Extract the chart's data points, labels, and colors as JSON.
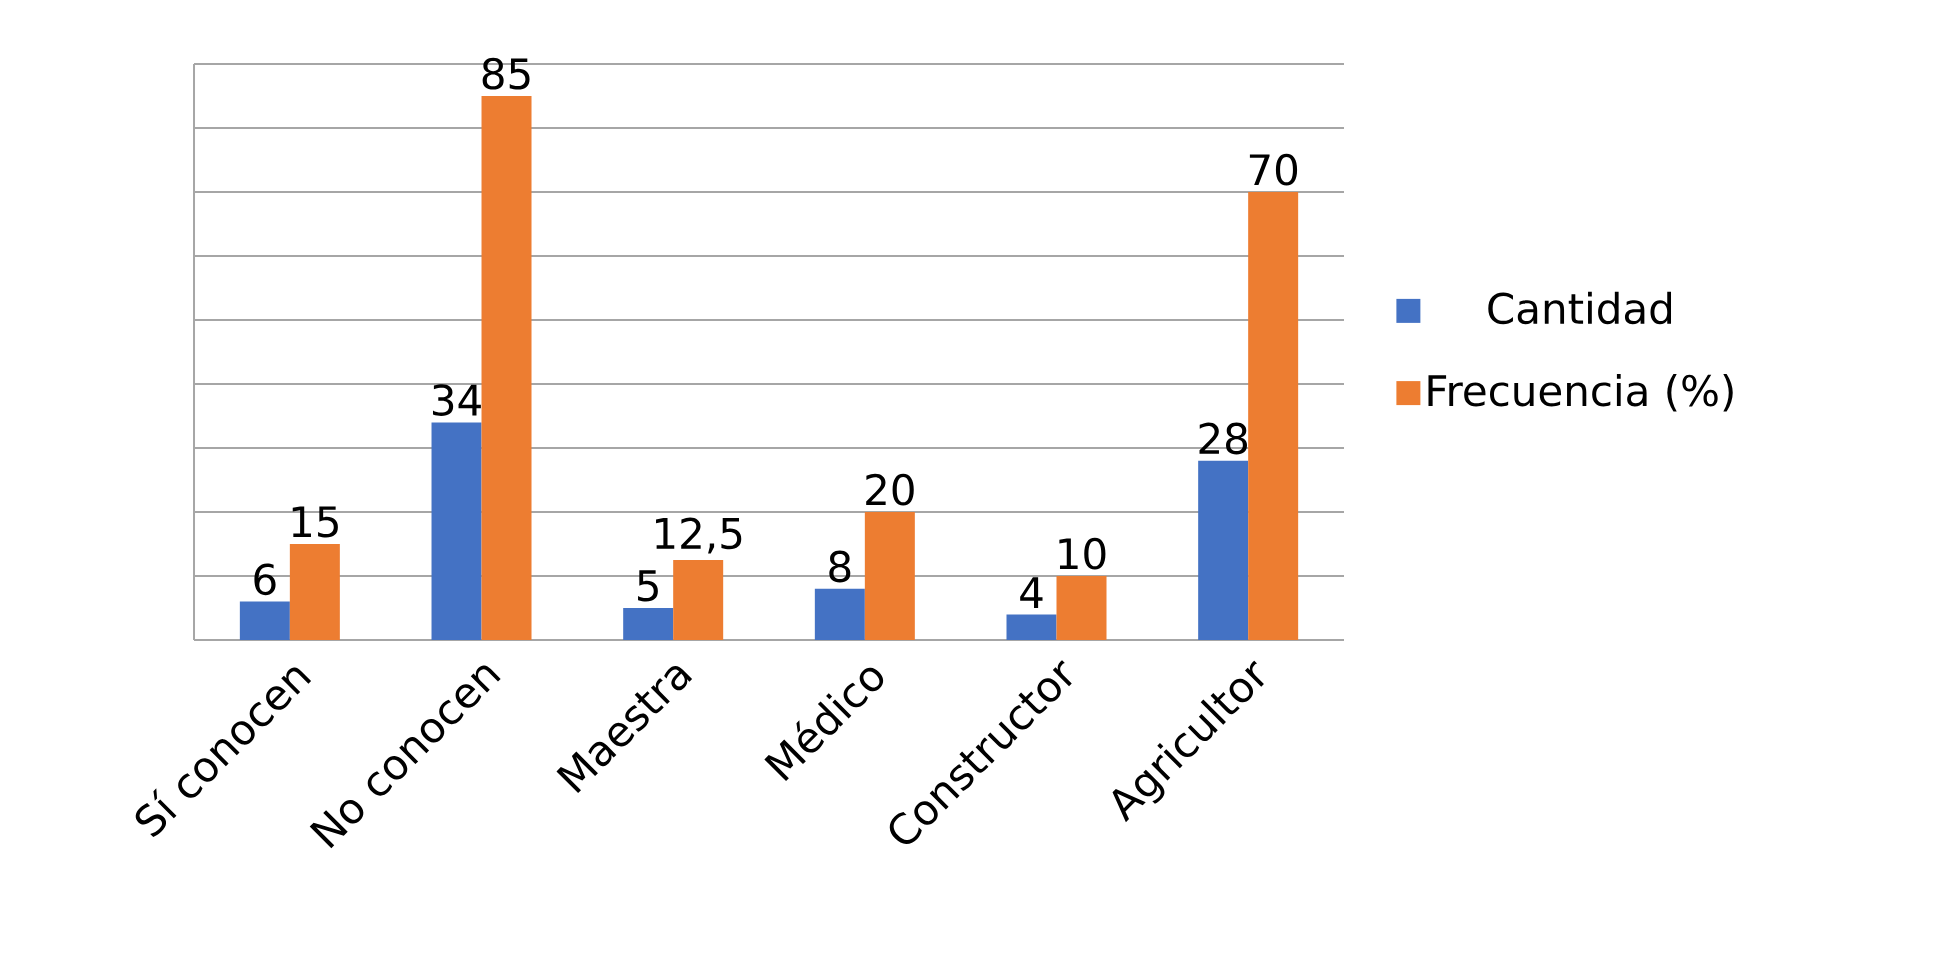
{
  "chart_data": {
    "type": "bar",
    "categories": [
      "Sí conocen",
      "No conocen",
      "Maestra",
      "Médico",
      "Constructor",
      "Agricultor"
    ],
    "series": [
      {
        "name": "Cantidad",
        "color": "#4472c4",
        "values": [
          6,
          34,
          5,
          8,
          4,
          28
        ],
        "value_labels": [
          "6",
          "34",
          "5",
          "8",
          "4",
          "28"
        ]
      },
      {
        "name": "Frecuencia (%)",
        "color": "#ed7d31",
        "values": [
          15,
          85,
          12.5,
          20,
          10,
          70
        ],
        "value_labels": [
          "15",
          "85",
          "12,5",
          "20",
          "10",
          "70"
        ]
      }
    ],
    "ylim": [
      0,
      90
    ],
    "yticks": [
      {
        "value": 0,
        "label": null
      },
      {
        "value": 10,
        "label": null
      },
      {
        "value": 20,
        "label": null
      },
      {
        "value": 30,
        "label": null
      },
      {
        "value": 40,
        "label": null
      },
      {
        "value": 50,
        "label": null
      },
      {
        "value": 60,
        "label": null
      },
      {
        "value": 70,
        "label": null
      },
      {
        "value": 80,
        "label": null
      },
      {
        "value": 90,
        "label": null
      }
    ],
    "tick_labels": "x",
    "grid": "y",
    "legend": "right"
  }
}
